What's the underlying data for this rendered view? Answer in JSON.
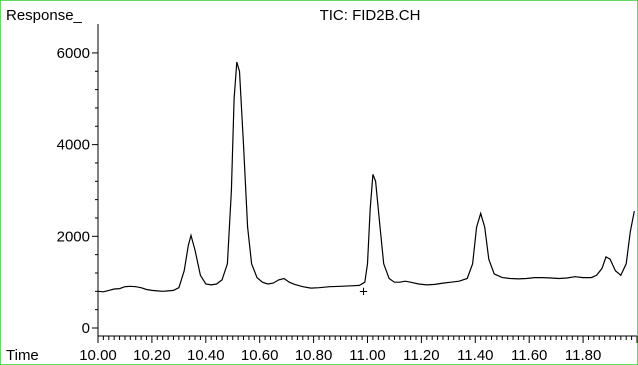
{
  "chart_data": {
    "type": "line",
    "title": "TIC: FID2B.CH",
    "ylabel": "Response_",
    "xlabel": "Time",
    "xlim": [
      10.0,
      12.0
    ],
    "ylim": [
      0,
      6500
    ],
    "x_ticks": [
      10.0,
      10.2,
      10.4,
      10.6,
      10.8,
      11.0,
      11.2,
      11.4,
      11.6,
      11.8
    ],
    "x_tick_labels": [
      "10.00",
      "10.20",
      "10.40",
      "10.60",
      "10.80",
      "11.00",
      "11.20",
      "11.40",
      "11.60",
      "11.80"
    ],
    "y_ticks": [
      0,
      2000,
      4000,
      6000
    ],
    "y_tick_labels": [
      "0",
      "2000",
      "4000",
      "6000"
    ],
    "marker": {
      "symbol": "+",
      "x": 11.0,
      "y": 820
    },
    "series": [
      {
        "values": [
          [
            10.0,
            800
          ],
          [
            10.02,
            790
          ],
          [
            10.04,
            820
          ],
          [
            10.06,
            850
          ],
          [
            10.08,
            860
          ],
          [
            10.1,
            900
          ],
          [
            10.12,
            910
          ],
          [
            10.14,
            900
          ],
          [
            10.16,
            880
          ],
          [
            10.18,
            840
          ],
          [
            10.2,
            820
          ],
          [
            10.22,
            810
          ],
          [
            10.24,
            800
          ],
          [
            10.26,
            810
          ],
          [
            10.28,
            820
          ],
          [
            10.3,
            880
          ],
          [
            10.32,
            1250
          ],
          [
            10.335,
            1800
          ],
          [
            10.345,
            2020
          ],
          [
            10.36,
            1700
          ],
          [
            10.38,
            1150
          ],
          [
            10.4,
            960
          ],
          [
            10.42,
            940
          ],
          [
            10.44,
            960
          ],
          [
            10.46,
            1050
          ],
          [
            10.48,
            1400
          ],
          [
            10.495,
            3000
          ],
          [
            10.505,
            5000
          ],
          [
            10.515,
            5800
          ],
          [
            10.525,
            5600
          ],
          [
            10.54,
            4000
          ],
          [
            10.555,
            2200
          ],
          [
            10.57,
            1400
          ],
          [
            10.59,
            1100
          ],
          [
            10.61,
            1000
          ],
          [
            10.63,
            960
          ],
          [
            10.65,
            980
          ],
          [
            10.67,
            1050
          ],
          [
            10.69,
            1080
          ],
          [
            10.71,
            1000
          ],
          [
            10.73,
            950
          ],
          [
            10.76,
            900
          ],
          [
            10.79,
            870
          ],
          [
            10.82,
            880
          ],
          [
            10.86,
            900
          ],
          [
            10.9,
            910
          ],
          [
            10.94,
            920
          ],
          [
            10.97,
            930
          ],
          [
            10.99,
            1000
          ],
          [
            11.0,
            1400
          ],
          [
            11.01,
            2600
          ],
          [
            11.02,
            3350
          ],
          [
            11.03,
            3200
          ],
          [
            11.045,
            2300
          ],
          [
            11.06,
            1400
          ],
          [
            11.08,
            1080
          ],
          [
            11.1,
            1000
          ],
          [
            11.12,
            1000
          ],
          [
            11.14,
            1020
          ],
          [
            11.16,
            1000
          ],
          [
            11.19,
            960
          ],
          [
            11.22,
            940
          ],
          [
            11.25,
            950
          ],
          [
            11.28,
            980
          ],
          [
            11.31,
            1000
          ],
          [
            11.34,
            1020
          ],
          [
            11.37,
            1080
          ],
          [
            11.39,
            1400
          ],
          [
            11.405,
            2200
          ],
          [
            11.42,
            2500
          ],
          [
            11.435,
            2200
          ],
          [
            11.45,
            1500
          ],
          [
            11.47,
            1180
          ],
          [
            11.5,
            1100
          ],
          [
            11.53,
            1080
          ],
          [
            11.56,
            1070
          ],
          [
            11.59,
            1080
          ],
          [
            11.62,
            1100
          ],
          [
            11.65,
            1100
          ],
          [
            11.68,
            1090
          ],
          [
            11.71,
            1080
          ],
          [
            11.74,
            1090
          ],
          [
            11.77,
            1120
          ],
          [
            11.8,
            1100
          ],
          [
            11.83,
            1100
          ],
          [
            11.85,
            1150
          ],
          [
            11.87,
            1300
          ],
          [
            11.885,
            1550
          ],
          [
            11.9,
            1500
          ],
          [
            11.92,
            1250
          ],
          [
            11.94,
            1150
          ],
          [
            11.96,
            1400
          ],
          [
            11.975,
            2100
          ],
          [
            11.99,
            2550
          ]
        ]
      }
    ]
  }
}
